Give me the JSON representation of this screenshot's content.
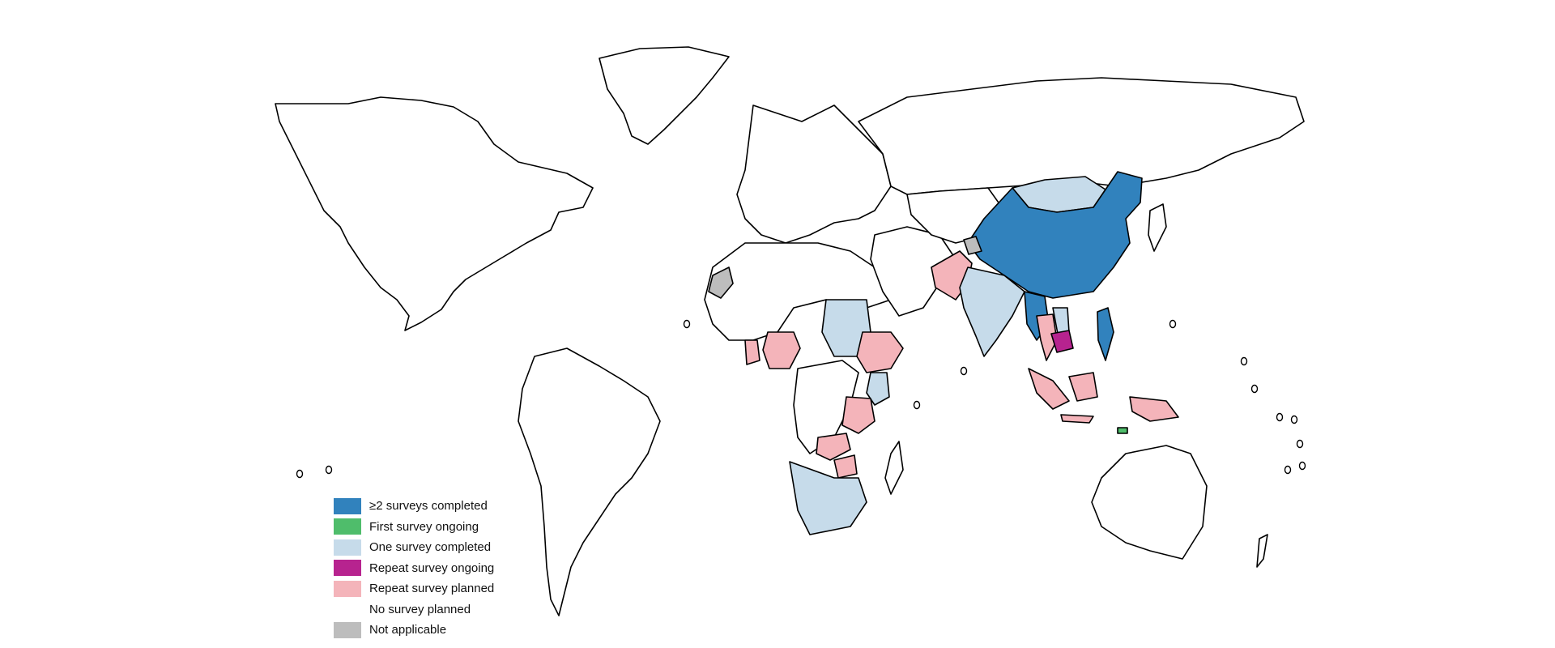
{
  "legend": {
    "items": [
      {
        "label": "≥2 surveys completed",
        "color": "#3182bd"
      },
      {
        "label": "First survey ongoing",
        "color": "#4fbd6b"
      },
      {
        "label": "One survey completed",
        "color": "#c6dbea"
      },
      {
        "label": "Repeat survey ongoing",
        "color": "#b7238f"
      },
      {
        "label": "Repeat survey planned",
        "color": "#f4b4ba"
      },
      {
        "label": "No survey planned",
        "color": "#ffffff"
      },
      {
        "label": "Not applicable",
        "color": "#bdbdbd"
      }
    ]
  },
  "regions": {
    "north_america": "No survey planned",
    "greenland": "No survey planned",
    "south_america": "No survey planned",
    "europe": "No survey planned",
    "russia": "No survey planned",
    "north_africa": "No survey planned",
    "middle_east": "No survey planned",
    "central_asia": "No survey planned",
    "western_sahara": "Not applicable",
    "kashmir": "Not applicable",
    "china": "≥2 surveys completed",
    "myanmar": "≥2 surveys completed",
    "philippines": "≥2 surveys completed",
    "mongolia": "One survey completed",
    "india": "One survey completed",
    "sudan": "One survey completed",
    "kenya": "One survey completed",
    "southern_africa": "One survey completed",
    "laos": "One survey completed",
    "pakistan": "Repeat survey planned",
    "nigeria": "Repeat survey planned",
    "ghana": "Repeat survey planned",
    "ethiopia": "Repeat survey planned",
    "tanzania": "Repeat survey planned",
    "zambia": "Repeat survey planned",
    "zimbabwe": "Repeat survey planned",
    "thailand": "Repeat survey planned",
    "indonesia": "Repeat survey planned",
    "cambodia": "Repeat survey ongoing",
    "timor_leste": "First survey ongoing",
    "australia": "No survey planned"
  }
}
